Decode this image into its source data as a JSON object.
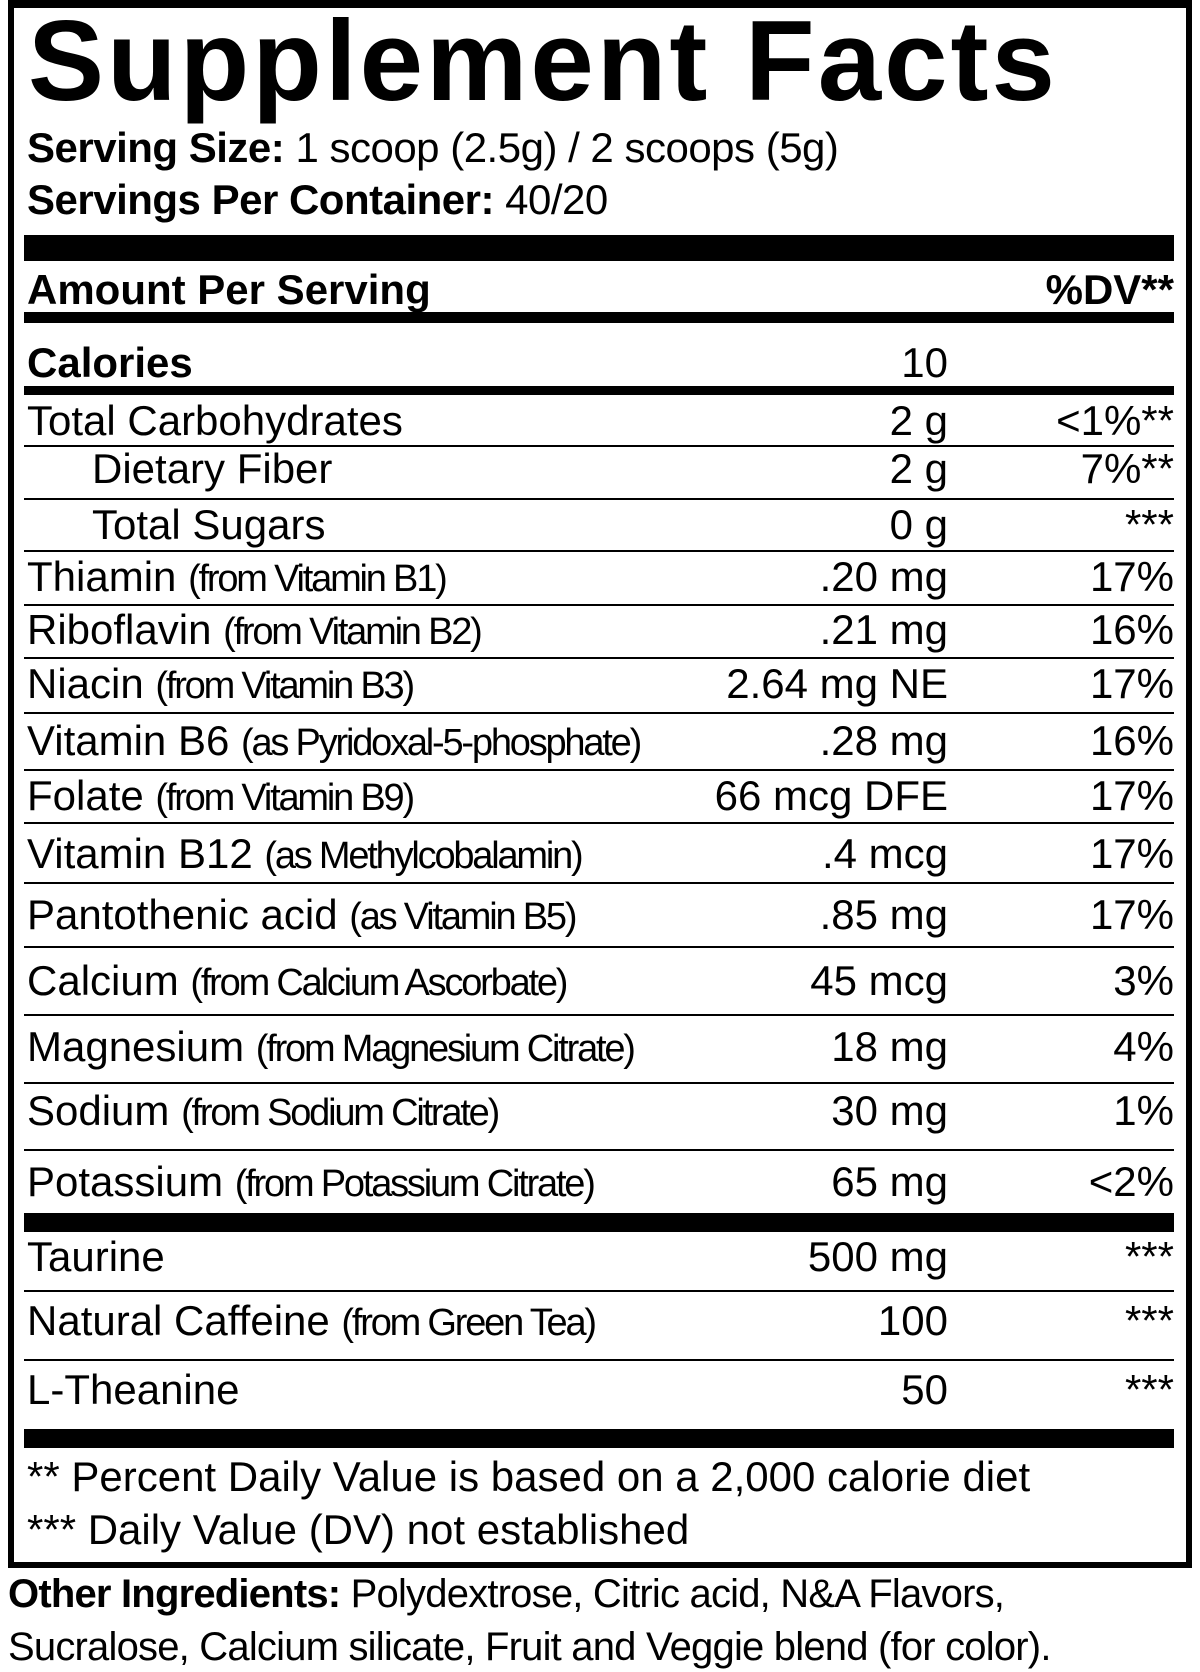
{
  "title": "Supplement Facts",
  "serving_size": {
    "label": "Serving Size:",
    "value": "1 scoop (2.5g) / 2 scoops (5g)"
  },
  "servings_per_container": {
    "label": "Servings Per Container:",
    "value": "40/20"
  },
  "header": {
    "amount_per_serving": "Amount Per Serving",
    "dv": "%DV**"
  },
  "rows": [
    {
      "name": "Calories",
      "note": "",
      "amount": "10",
      "dv": "",
      "bold": true,
      "indent": false
    },
    {
      "name": "Total Carbohydrates",
      "note": "",
      "amount": "2 g",
      "dv": "<1%**",
      "bold": false,
      "indent": false
    },
    {
      "name": "Dietary Fiber",
      "note": "",
      "amount": "2 g",
      "dv": "7%**",
      "bold": false,
      "indent": true
    },
    {
      "name": "Total Sugars",
      "note": "",
      "amount": "0 g",
      "dv": "***",
      "bold": false,
      "indent": true
    },
    {
      "name": "Thiamin",
      "note": "(from Vitamin B1)",
      "amount": ".20 mg",
      "dv": "17%",
      "bold": false,
      "indent": false
    },
    {
      "name": "Riboflavin",
      "note": "(from Vitamin B2)",
      "amount": ".21 mg",
      "dv": "16%",
      "bold": false,
      "indent": false
    },
    {
      "name": "Niacin",
      "note": "(from Vitamin B3)",
      "amount": "2.64 mg NE",
      "dv": "17%",
      "bold": false,
      "indent": false
    },
    {
      "name": "Vitamin B6",
      "note": "(as Pyridoxal-5-phosphate)",
      "amount": ".28 mg",
      "dv": "16%",
      "bold": false,
      "indent": false
    },
    {
      "name": "Folate",
      "note": "(from Vitamin B9)",
      "amount": "66 mcg DFE",
      "dv": "17%",
      "bold": false,
      "indent": false
    },
    {
      "name": "Vitamin B12",
      "note": "(as Methylcobalamin)",
      "amount": ".4 mcg",
      "dv": "17%",
      "bold": false,
      "indent": false
    },
    {
      "name": "Pantothenic acid",
      "note": "(as Vitamin B5)",
      "amount": ".85 mg",
      "dv": "17%",
      "bold": false,
      "indent": false
    },
    {
      "name": "Calcium",
      "note": "(from Calcium Ascorbate)",
      "amount": "45 mcg",
      "dv": "3%",
      "bold": false,
      "indent": false
    },
    {
      "name": "Magnesium",
      "note": "(from Magnesium Citrate)",
      "amount": "18 mg",
      "dv": "4%",
      "bold": false,
      "indent": false
    },
    {
      "name": "Sodium",
      "note": "(from Sodium Citrate)",
      "amount": "30 mg",
      "dv": "1%",
      "bold": false,
      "indent": false
    },
    {
      "name": "Potassium",
      "note": "(from Potassium Citrate)",
      "amount": "65 mg",
      "dv": "<2%",
      "bold": false,
      "indent": false
    },
    {
      "name": "Taurine",
      "note": "",
      "amount": "500 mg",
      "dv": "***",
      "bold": false,
      "indent": false
    },
    {
      "name": "Natural Caffeine",
      "note": "(from Green Tea)",
      "amount": "100",
      "dv": "***",
      "bold": false,
      "indent": false
    },
    {
      "name": "L-Theanine",
      "note": "",
      "amount": "50",
      "dv": "***",
      "bold": false,
      "indent": false
    }
  ],
  "footnotes": [
    "** Percent Daily Value is based on a 2,000 calorie diet",
    "*** Daily Value (DV) not established"
  ],
  "other_ingredients": {
    "label": "Other Ingredients:",
    "line1": "Polydextrose, Citric acid, N&A Flavors,",
    "line2": "Sucralose, Calcium silicate, Fruit and Veggie blend (for color)."
  }
}
